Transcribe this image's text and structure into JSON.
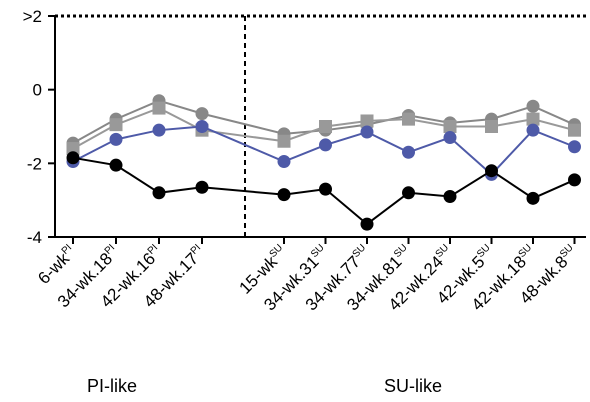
{
  "chart_data": {
    "type": "line",
    "ylim": [
      -4,
      2
    ],
    "yticks": [
      {
        "value": 2,
        "label": ">2"
      },
      {
        "value": 0,
        "label": "0"
      },
      {
        "value": -2,
        "label": "-2"
      },
      {
        "value": -4,
        "label": "-4"
      }
    ],
    "categories": [
      {
        "label": "6-wk",
        "sup": "PI"
      },
      {
        "label": "34-wk.18",
        "sup": "PI"
      },
      {
        "label": "42-wk.16",
        "sup": "PI"
      },
      {
        "label": "48-wk.17",
        "sup": "PI"
      },
      {
        "label": "15-wk",
        "sup": "SU"
      },
      {
        "label": "34-wk.31",
        "sup": "SU"
      },
      {
        "label": "34-wk.77",
        "sup": "SU"
      },
      {
        "label": "34-wk.81",
        "sup": "SU"
      },
      {
        "label": "42-wk.24",
        "sup": "SU"
      },
      {
        "label": "42-wk.5",
        "sup": "SU"
      },
      {
        "label": "42-wk.18",
        "sup": "SU"
      },
      {
        "label": "48-wk.8",
        "sup": "SU"
      }
    ],
    "groups": [
      {
        "label": "PI-like"
      },
      {
        "label": "SU-like"
      }
    ],
    "series": [
      {
        "color": "#888888",
        "marker": "circle",
        "values": [
          -1.45,
          -0.8,
          -0.3,
          -0.65,
          -1.2,
          -1.1,
          -0.95,
          -0.7,
          -0.9,
          -0.8,
          -0.45,
          -0.95
        ]
      },
      {
        "color": "#999999",
        "marker": "square",
        "values": [
          -1.6,
          -0.95,
          -0.5,
          -1.1,
          -1.4,
          -1.0,
          -0.85,
          -0.8,
          -1.0,
          -1.0,
          -0.8,
          -1.1
        ]
      },
      {
        "color": "#4e5aa8",
        "marker": "circle",
        "values": [
          -1.95,
          -1.35,
          -1.1,
          -1.0,
          -1.95,
          -1.5,
          -1.15,
          -1.7,
          -1.3,
          -2.3,
          -1.1,
          -1.55
        ]
      },
      {
        "color": "#000000",
        "marker": "circle",
        "values": [
          -1.85,
          -2.05,
          -2.8,
          -2.65,
          -2.85,
          -2.7,
          -3.65,
          -2.8,
          -2.9,
          -2.2,
          -2.95,
          -2.45
        ]
      }
    ],
    "grid": false,
    "top_reference_line": 2,
    "divider": "dashed vertical line between PI-like and SU-like groups"
  }
}
